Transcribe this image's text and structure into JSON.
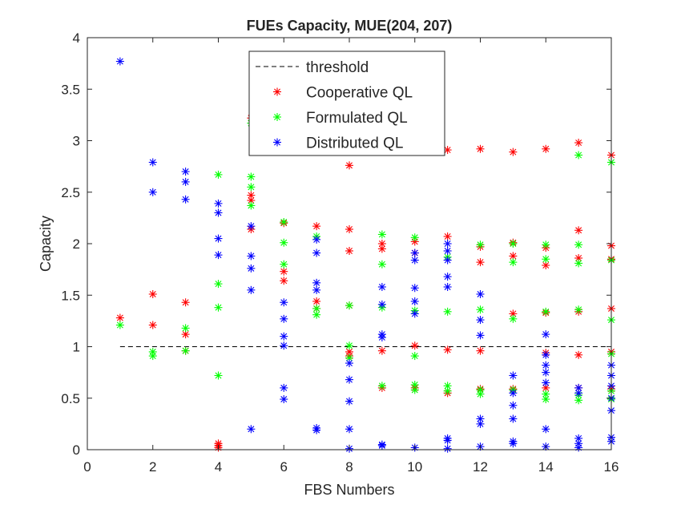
{
  "chart_data": {
    "type": "scatter",
    "title": "FUEs Capacity, MUE(204, 207)",
    "xlabel": "FBS Numbers",
    "ylabel": "Capacity",
    "xlim": [
      0,
      16
    ],
    "ylim": [
      0,
      4
    ],
    "xticks": [
      "0",
      "2",
      "4",
      "6",
      "8",
      "10",
      "12",
      "14",
      "16"
    ],
    "yticks": [
      "0",
      "0.5",
      "1",
      "1.5",
      "2",
      "2.5",
      "3",
      "3.5",
      "4"
    ],
    "grid": false,
    "legend_position": "top-center",
    "marker": "asterisk",
    "threshold": {
      "name": "threshold",
      "color": "#000000",
      "style": "dashed",
      "x": [
        1,
        16
      ],
      "y": [
        1,
        1
      ]
    },
    "series": [
      {
        "name": "Cooperative QL",
        "color": "#ff0000",
        "points": [
          [
            1,
            1.28
          ],
          [
            2,
            1.51
          ],
          [
            2,
            1.21
          ],
          [
            3,
            1.43
          ],
          [
            3,
            1.12
          ],
          [
            3,
            0.96
          ],
          [
            4,
            0.06
          ],
          [
            4,
            0.04
          ],
          [
            4,
            0.02
          ],
          [
            5,
            3.22
          ],
          [
            5,
            2.47
          ],
          [
            5,
            2.42
          ],
          [
            5,
            2.14
          ],
          [
            6,
            2.2
          ],
          [
            6,
            1.73
          ],
          [
            6,
            1.64
          ],
          [
            7,
            2.17
          ],
          [
            7,
            1.44
          ],
          [
            7,
            1.37
          ],
          [
            8,
            2.76
          ],
          [
            8,
            2.14
          ],
          [
            8,
            1.93
          ],
          [
            8,
            1.4
          ],
          [
            8,
            0.95
          ],
          [
            8,
            0.91
          ],
          [
            9,
            2.0
          ],
          [
            9,
            1.95
          ],
          [
            9,
            0.96
          ],
          [
            9,
            0.6
          ],
          [
            10,
            2.02
          ],
          [
            10,
            1.91
          ],
          [
            10,
            1.01
          ],
          [
            10,
            0.6
          ],
          [
            11,
            2.91
          ],
          [
            11,
            2.07
          ],
          [
            11,
            0.97
          ],
          [
            11,
            0.55
          ],
          [
            12,
            2.92
          ],
          [
            12,
            1.97
          ],
          [
            12,
            1.82
          ],
          [
            12,
            0.96
          ],
          [
            12,
            0.59
          ],
          [
            13,
            2.89
          ],
          [
            13,
            2.01
          ],
          [
            13,
            1.88
          ],
          [
            13,
            1.32
          ],
          [
            13,
            0.59
          ],
          [
            14,
            2.92
          ],
          [
            14,
            1.96
          ],
          [
            14,
            1.79
          ],
          [
            14,
            1.33
          ],
          [
            14,
            0.94
          ],
          [
            14,
            0.6
          ],
          [
            15,
            2.98
          ],
          [
            15,
            2.13
          ],
          [
            15,
            1.86
          ],
          [
            15,
            1.34
          ],
          [
            15,
            0.92
          ],
          [
            15,
            0.6
          ],
          [
            16,
            2.86
          ],
          [
            16,
            1.98
          ],
          [
            16,
            1.85
          ],
          [
            16,
            1.37
          ],
          [
            16,
            0.95
          ],
          [
            16,
            0.59
          ]
        ]
      },
      {
        "name": "Formulated QL",
        "color": "#00ff00",
        "points": [
          [
            1,
            1.21
          ],
          [
            2,
            0.95
          ],
          [
            2,
            0.91
          ],
          [
            3,
            1.18
          ],
          [
            3,
            0.96
          ],
          [
            4,
            2.67
          ],
          [
            4,
            1.61
          ],
          [
            4,
            1.38
          ],
          [
            4,
            0.72
          ],
          [
            5,
            3.17
          ],
          [
            5,
            2.65
          ],
          [
            5,
            2.55
          ],
          [
            5,
            2.37
          ],
          [
            6,
            2.21
          ],
          [
            6,
            2.01
          ],
          [
            6,
            1.8
          ],
          [
            7,
            2.07
          ],
          [
            7,
            1.37
          ],
          [
            7,
            1.31
          ],
          [
            8,
            1.4
          ],
          [
            8,
            1.01
          ],
          [
            8,
            0.89
          ],
          [
            9,
            2.09
          ],
          [
            9,
            1.8
          ],
          [
            9,
            1.38
          ],
          [
            9,
            0.62
          ],
          [
            10,
            2.06
          ],
          [
            10,
            1.35
          ],
          [
            10,
            0.91
          ],
          [
            10,
            0.63
          ],
          [
            10,
            0.58
          ],
          [
            11,
            1.87
          ],
          [
            11,
            1.34
          ],
          [
            11,
            0.62
          ],
          [
            11,
            0.57
          ],
          [
            12,
            1.99
          ],
          [
            12,
            1.36
          ],
          [
            12,
            0.58
          ],
          [
            12,
            0.54
          ],
          [
            13,
            2.0
          ],
          [
            13,
            1.82
          ],
          [
            13,
            1.27
          ],
          [
            13,
            0.58
          ],
          [
            14,
            1.99
          ],
          [
            14,
            1.85
          ],
          [
            14,
            1.34
          ],
          [
            14,
            0.54
          ],
          [
            14,
            0.49
          ],
          [
            15,
            2.86
          ],
          [
            15,
            1.99
          ],
          [
            15,
            1.81
          ],
          [
            15,
            1.36
          ],
          [
            15,
            0.53
          ],
          [
            15,
            0.48
          ],
          [
            16,
            2.79
          ],
          [
            16,
            1.84
          ],
          [
            16,
            1.26
          ],
          [
            16,
            0.93
          ],
          [
            16,
            0.57
          ],
          [
            16,
            0.49
          ]
        ]
      },
      {
        "name": "Distributed QL",
        "color": "#0000ff",
        "points": [
          [
            1,
            3.77
          ],
          [
            2,
            2.79
          ],
          [
            2,
            2.5
          ],
          [
            3,
            2.7
          ],
          [
            3,
            2.6
          ],
          [
            3,
            2.43
          ],
          [
            4,
            2.39
          ],
          [
            4,
            2.3
          ],
          [
            4,
            2.05
          ],
          [
            4,
            1.89
          ],
          [
            5,
            2.17
          ],
          [
            5,
            1.88
          ],
          [
            5,
            1.76
          ],
          [
            5,
            1.55
          ],
          [
            5,
            0.2
          ],
          [
            6,
            1.43
          ],
          [
            6,
            1.27
          ],
          [
            6,
            1.1
          ],
          [
            6,
            1.01
          ],
          [
            6,
            0.6
          ],
          [
            6,
            0.49
          ],
          [
            7,
            2.04
          ],
          [
            7,
            1.91
          ],
          [
            7,
            1.62
          ],
          [
            7,
            1.55
          ],
          [
            7,
            0.21
          ],
          [
            7,
            0.19
          ],
          [
            8,
            0.84
          ],
          [
            8,
            0.68
          ],
          [
            8,
            0.47
          ],
          [
            8,
            0.2
          ],
          [
            8,
            0.01
          ],
          [
            9,
            1.58
          ],
          [
            9,
            1.41
          ],
          [
            9,
            1.12
          ],
          [
            9,
            1.09
          ],
          [
            9,
            0.05
          ],
          [
            9,
            0.04
          ],
          [
            10,
            1.91
          ],
          [
            10,
            1.84
          ],
          [
            10,
            1.57
          ],
          [
            10,
            1.44
          ],
          [
            10,
            1.32
          ],
          [
            10,
            0.02
          ],
          [
            11,
            2.0
          ],
          [
            11,
            1.93
          ],
          [
            11,
            1.84
          ],
          [
            11,
            1.68
          ],
          [
            11,
            1.58
          ],
          [
            11,
            0.11
          ],
          [
            11,
            0.09
          ],
          [
            11,
            0.01
          ],
          [
            12,
            1.51
          ],
          [
            12,
            1.26
          ],
          [
            12,
            1.11
          ],
          [
            12,
            0.3
          ],
          [
            12,
            0.25
          ],
          [
            12,
            0.03
          ],
          [
            13,
            0.72
          ],
          [
            13,
            0.55
          ],
          [
            13,
            0.43
          ],
          [
            13,
            0.3
          ],
          [
            13,
            0.08
          ],
          [
            13,
            0.06
          ],
          [
            14,
            1.12
          ],
          [
            14,
            0.92
          ],
          [
            14,
            0.82
          ],
          [
            14,
            0.75
          ],
          [
            14,
            0.65
          ],
          [
            14,
            0.2
          ],
          [
            14,
            0.03
          ],
          [
            15,
            0.6
          ],
          [
            15,
            0.55
          ],
          [
            15,
            0.11
          ],
          [
            15,
            0.06
          ],
          [
            15,
            0.02
          ],
          [
            16,
            0.82
          ],
          [
            16,
            0.72
          ],
          [
            16,
            0.62
          ],
          [
            16,
            0.5
          ],
          [
            16,
            0.38
          ],
          [
            16,
            0.12
          ],
          [
            16,
            0.08
          ]
        ]
      }
    ]
  }
}
